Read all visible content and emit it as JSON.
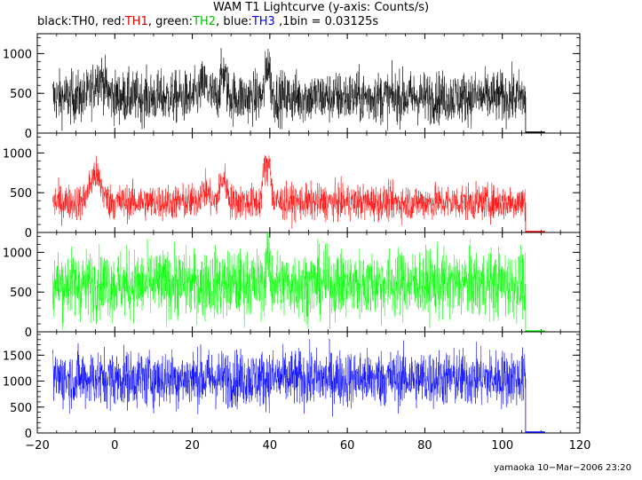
{
  "chart_data": {
    "type": "line",
    "title": "WAM T1 Lightcurve (y-axis: Counts/s)",
    "subtitle_parts": [
      {
        "text": "black:",
        "color": "#000000"
      },
      {
        "text": "TH0",
        "color": "#000000"
      },
      {
        "text": ", red:",
        "color": "#000000"
      },
      {
        "text": "TH1",
        "color": "#e00000"
      },
      {
        "text": ", green:",
        "color": "#000000"
      },
      {
        "text": "TH2",
        "color": "#00c000"
      },
      {
        "text": ", blue:",
        "color": "#000000"
      },
      {
        "text": "TH3",
        "color": "#0000ff"
      },
      {
        "text": " ,1bin = 0.03125s",
        "color": "#000000"
      }
    ],
    "xlim": [
      -20,
      120
    ],
    "x_ticks": [
      -20,
      0,
      20,
      40,
      60,
      80,
      100,
      120
    ],
    "x_tick_labels": [
      "−20",
      "0",
      "20",
      "40",
      "60",
      "80",
      "100",
      "120"
    ],
    "data_x_range": [
      -16,
      106
    ],
    "tail_x_range": [
      106,
      111
    ],
    "panels": [
      {
        "series": "TH0",
        "color": "#000000",
        "ylim": [
          0,
          1250
        ],
        "y_ticks": [
          0,
          500,
          1000
        ],
        "y_tick_labels": [
          "0",
          "500",
          "1000"
        ],
        "baseline": 450,
        "noise": 160,
        "peaks": [
          {
            "x": -4,
            "height": 250,
            "width": 2
          },
          {
            "x": 23,
            "height": 150,
            "width": 1.5
          },
          {
            "x": 28,
            "height": 300,
            "width": 1
          },
          {
            "x": 39.5,
            "height": 450,
            "width": 0.8
          }
        ]
      },
      {
        "series": "TH1",
        "color": "#ff0000",
        "ylim": [
          0,
          1250
        ],
        "y_ticks": [
          0,
          500,
          1000
        ],
        "y_tick_labels": [
          "0",
          "500",
          "1000"
        ],
        "baseline": 380,
        "noise": 110,
        "peaks": [
          {
            "x": -5,
            "height": 350,
            "width": 2
          },
          {
            "x": 23,
            "height": 150,
            "width": 1.5
          },
          {
            "x": 28,
            "height": 300,
            "width": 1.2
          },
          {
            "x": 38.8,
            "height": 450,
            "width": 0.8
          },
          {
            "x": 40,
            "height": 500,
            "width": 0.5
          }
        ]
      },
      {
        "series": "TH2",
        "color": "#00ff00",
        "ylim": [
          0,
          1250
        ],
        "y_ticks": [
          0,
          500,
          1000
        ],
        "y_tick_labels": [
          "0",
          "500",
          "1000"
        ],
        "baseline": 600,
        "noise": 210,
        "peaks": [
          {
            "x": 39.5,
            "height": 400,
            "width": 0.6
          }
        ]
      },
      {
        "series": "TH3",
        "color": "#0000ff",
        "ylim": [
          0,
          1950
        ],
        "y_ticks": [
          0,
          500,
          1000,
          1500
        ],
        "y_tick_labels": [
          "0",
          "500",
          "1000",
          "1500"
        ],
        "baseline": 1050,
        "noise": 270,
        "peaks": []
      }
    ],
    "grid": false
  },
  "footer": "yamaoka 10−Mar−2006 23:20"
}
